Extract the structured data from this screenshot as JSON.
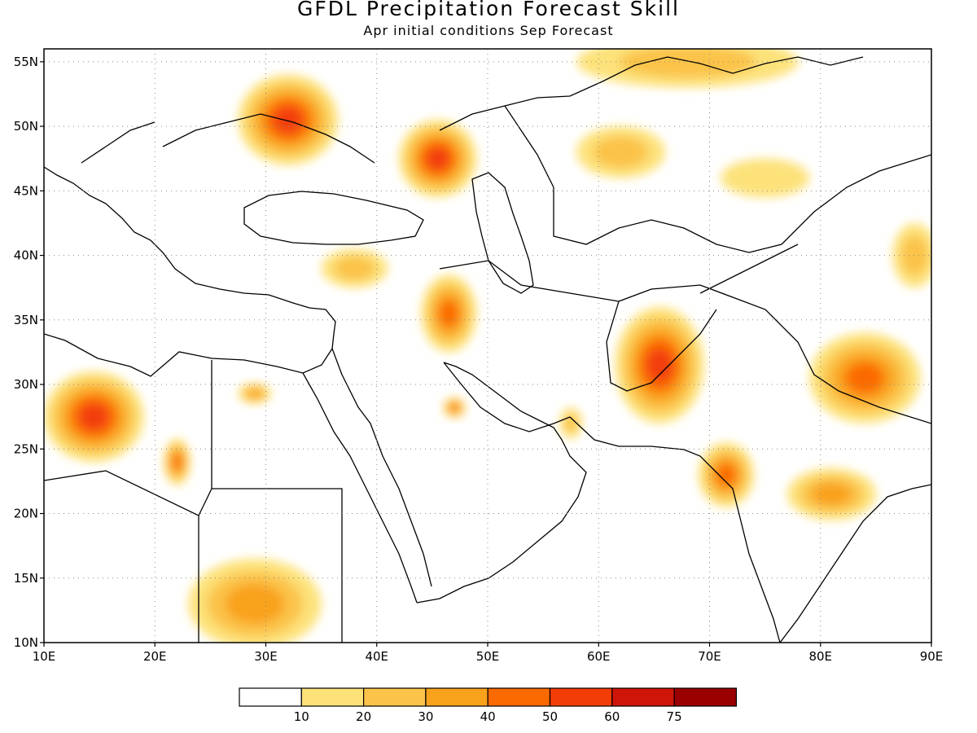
{
  "title": "GFDL Precipitation Forecast Skill",
  "subtitle": "Apr initial conditions  Sep Forecast",
  "map": {
    "lon_range": [
      10,
      90
    ],
    "lat_range": [
      10,
      56
    ],
    "lon_ticks": [
      "10E",
      "20E",
      "30E",
      "40E",
      "50E",
      "60E",
      "70E",
      "80E",
      "90E"
    ],
    "lon_values": [
      10,
      20,
      30,
      40,
      50,
      60,
      70,
      80,
      90
    ],
    "lat_ticks": [
      "10N",
      "15N",
      "20N",
      "25N",
      "30N",
      "35N",
      "40N",
      "45N",
      "50N",
      "55N"
    ],
    "lat_values": [
      10,
      15,
      20,
      25,
      30,
      35,
      40,
      45,
      50,
      55
    ],
    "gridlines": true
  },
  "colorbar": {
    "labels": [
      "10",
      "20",
      "30",
      "40",
      "50",
      "60",
      "75"
    ],
    "colors": [
      "#ffffff",
      "#fde27a",
      "#fbc349",
      "#f9a21c",
      "#fb6a00",
      "#f23d07",
      "#cf1508",
      "#9b0000"
    ]
  },
  "skill_regions": [
    {
      "lon": 32,
      "lat": 50.5,
      "level": 5,
      "rx": 4.5,
      "ry": 3.5
    },
    {
      "lon": 45.5,
      "lat": 47.5,
      "level": 5,
      "rx": 3.5,
      "ry": 3
    },
    {
      "lon": 14.5,
      "lat": 27.5,
      "level": 5,
      "rx": 4.5,
      "ry": 3.5
    },
    {
      "lon": 65.5,
      "lat": 31.5,
      "level": 5,
      "rx": 4,
      "ry": 4.5
    },
    {
      "lon": 84,
      "lat": 30.5,
      "level": 4,
      "rx": 5,
      "ry": 3.5
    },
    {
      "lon": 71.5,
      "lat": 23,
      "level": 4,
      "rx": 2.5,
      "ry": 2.5
    },
    {
      "lon": 22,
      "lat": 24,
      "level": 4,
      "rx": 1.2,
      "ry": 1.8
    },
    {
      "lon": 46.5,
      "lat": 35.5,
      "level": 4,
      "rx": 2.5,
      "ry": 3
    },
    {
      "lon": 29,
      "lat": 13,
      "level": 3,
      "rx": 6,
      "ry": 3.5
    },
    {
      "lon": 38,
      "lat": 39,
      "level": 2,
      "rx": 3,
      "ry": 1.5
    },
    {
      "lon": 29,
      "lat": 29.3,
      "level": 3,
      "rx": 1.5,
      "ry": 0.8
    },
    {
      "lon": 47,
      "lat": 28.2,
      "level": 4,
      "rx": 1,
      "ry": 0.8
    },
    {
      "lon": 81,
      "lat": 21.5,
      "level": 3,
      "rx": 4,
      "ry": 2
    },
    {
      "lon": 88.5,
      "lat": 40,
      "level": 2,
      "rx": 2,
      "ry": 2.5
    },
    {
      "lon": 68,
      "lat": 55,
      "level": 2,
      "rx": 10,
      "ry": 2
    },
    {
      "lon": 62,
      "lat": 48,
      "level": 2,
      "rx": 4,
      "ry": 2
    },
    {
      "lon": 75,
      "lat": 46,
      "level": 1,
      "rx": 4,
      "ry": 1.5
    },
    {
      "lon": 57.5,
      "lat": 27,
      "level": 2,
      "rx": 1,
      "ry": 1.2
    }
  ]
}
